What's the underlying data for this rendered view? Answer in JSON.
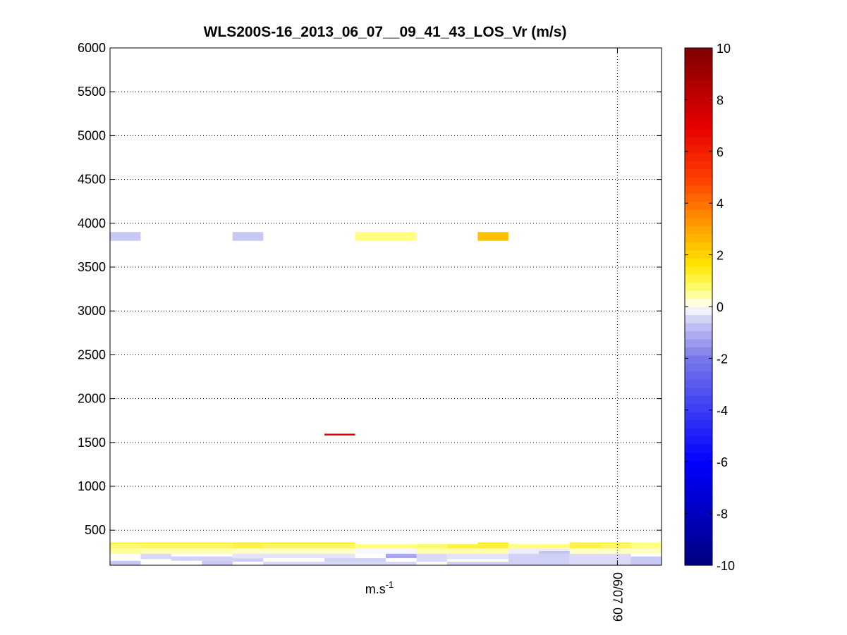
{
  "chart_data": {
    "type": "heatmap",
    "title": "WLS200S-16_2013_06_07__09_41_43_LOS_Vr (m/s)",
    "xlabel": "m.s",
    "xlabel_superscript": "-1",
    "ylabel": "",
    "ylim": [
      100,
      6000
    ],
    "yticks": [
      500,
      1000,
      1500,
      2000,
      2500,
      3000,
      3500,
      4000,
      4500,
      5000,
      5500,
      6000
    ],
    "xticks": [
      {
        "x": 0.92,
        "label": "06/07 09"
      }
    ],
    "grid": true,
    "colorbar": {
      "range": [
        -10,
        10
      ],
      "ticks": [
        10,
        8,
        6,
        4,
        2,
        0,
        -2,
        -4,
        -6,
        -8,
        -10
      ],
      "placement": "right"
    },
    "cells": [
      {
        "x0": 0.0,
        "x1": 0.0556,
        "y0": 3800,
        "y1": 3900,
        "value": -0.6
      },
      {
        "x0": 0.2222,
        "x1": 0.2778,
        "y0": 3800,
        "y1": 3900,
        "value": -0.6
      },
      {
        "x0": 0.4444,
        "x1": 0.5556,
        "y0": 3800,
        "y1": 3900,
        "value": 0.6
      },
      {
        "x0": 0.6667,
        "x1": 0.7222,
        "y0": 3800,
        "y1": 3900,
        "value": 2.4
      },
      {
        "x0": 0.3889,
        "x1": 0.4444,
        "y0": 1580,
        "y1": 1600,
        "value": 7.0
      },
      {
        "x0": 0.0,
        "x1": 0.2222,
        "y0": 340,
        "y1": 360,
        "value": 1.2
      },
      {
        "x0": 0.2222,
        "x1": 0.4444,
        "y0": 340,
        "y1": 360,
        "value": 1.3
      },
      {
        "x0": 0.6667,
        "x1": 0.7222,
        "y0": 340,
        "y1": 360,
        "value": 1.4
      },
      {
        "x0": 0.8333,
        "x1": 0.9444,
        "y0": 340,
        "y1": 360,
        "value": 1.2
      },
      {
        "x0": 0.0,
        "x1": 0.0556,
        "y0": 290,
        "y1": 340,
        "value": 0.8
      },
      {
        "x0": 0.0556,
        "x1": 0.2222,
        "y0": 290,
        "y1": 340,
        "value": 0.9
      },
      {
        "x0": 0.2222,
        "x1": 0.2778,
        "y0": 290,
        "y1": 340,
        "value": 1.1
      },
      {
        "x0": 0.2778,
        "x1": 0.4444,
        "y0": 290,
        "y1": 340,
        "value": 0.9
      },
      {
        "x0": 0.4444,
        "x1": 0.5556,
        "y0": 290,
        "y1": 340,
        "value": 0.6
      },
      {
        "x0": 0.5556,
        "x1": 0.6111,
        "y0": 290,
        "y1": 340,
        "value": 0.8
      },
      {
        "x0": 0.6111,
        "x1": 0.6667,
        "y0": 290,
        "y1": 340,
        "value": 1.1
      },
      {
        "x0": 0.6667,
        "x1": 0.7222,
        "y0": 290,
        "y1": 340,
        "value": 1.2
      },
      {
        "x0": 0.7222,
        "x1": 0.8333,
        "y0": 290,
        "y1": 340,
        "value": 0.6
      },
      {
        "x0": 0.8333,
        "x1": 0.8889,
        "y0": 290,
        "y1": 340,
        "value": 1.1
      },
      {
        "x0": 0.8889,
        "x1": 0.9444,
        "y0": 290,
        "y1": 340,
        "value": 0.9
      },
      {
        "x0": 0.9444,
        "x1": 1.0,
        "y0": 290,
        "y1": 360,
        "value": 0.6
      },
      {
        "x0": 0.0,
        "x1": 0.0556,
        "y0": 230,
        "y1": 290,
        "value": 0.5
      },
      {
        "x0": 0.0556,
        "x1": 0.2222,
        "y0": 230,
        "y1": 290,
        "value": 0.4
      },
      {
        "x0": 0.2222,
        "x1": 0.4444,
        "y0": 230,
        "y1": 290,
        "value": 0.3
      },
      {
        "x0": 0.4444,
        "x1": 0.5556,
        "y0": 230,
        "y1": 290,
        "value": -0.1
      },
      {
        "x0": 0.5556,
        "x1": 0.7222,
        "y0": 230,
        "y1": 290,
        "value": 0.4
      },
      {
        "x0": 0.7222,
        "x1": 0.8333,
        "y0": 230,
        "y1": 290,
        "value": -0.2
      },
      {
        "x0": 0.8333,
        "x1": 1.0,
        "y0": 230,
        "y1": 290,
        "value": 0.3
      },
      {
        "x0": 0.0,
        "x1": 0.0556,
        "y0": 100,
        "y1": 150,
        "value": -0.6
      },
      {
        "x0": 0.0556,
        "x1": 0.1111,
        "y0": 170,
        "y1": 230,
        "value": -0.4
      },
      {
        "x0": 0.1111,
        "x1": 0.2222,
        "y0": 150,
        "y1": 200,
        "value": -0.5
      },
      {
        "x0": 0.1667,
        "x1": 0.2222,
        "y0": 100,
        "y1": 150,
        "value": -0.6
      },
      {
        "x0": 0.2222,
        "x1": 0.2778,
        "y0": 140,
        "y1": 180,
        "value": -0.5
      },
      {
        "x0": 0.2222,
        "x1": 0.4444,
        "y0": 180,
        "y1": 230,
        "value": -0.3
      },
      {
        "x0": 0.2778,
        "x1": 0.4444,
        "y0": 100,
        "y1": 140,
        "value": -0.4
      },
      {
        "x0": 0.3889,
        "x1": 0.5,
        "y0": 140,
        "y1": 180,
        "value": -0.5
      },
      {
        "x0": 0.4444,
        "x1": 0.5556,
        "y0": 100,
        "y1": 140,
        "value": -0.4
      },
      {
        "x0": 0.5,
        "x1": 0.5556,
        "y0": 180,
        "y1": 230,
        "value": -1.2
      },
      {
        "x0": 0.5556,
        "x1": 0.6111,
        "y0": 140,
        "y1": 230,
        "value": -0.4
      },
      {
        "x0": 0.6111,
        "x1": 0.7222,
        "y0": 100,
        "y1": 140,
        "value": -0.5
      },
      {
        "x0": 0.6111,
        "x1": 0.7222,
        "y0": 170,
        "y1": 230,
        "value": -0.3
      },
      {
        "x0": 0.7222,
        "x1": 0.8333,
        "y0": 100,
        "y1": 230,
        "value": -0.5
      },
      {
        "x0": 0.7778,
        "x1": 0.8333,
        "y0": 230,
        "y1": 260,
        "value": -0.7
      },
      {
        "x0": 0.8333,
        "x1": 0.9444,
        "y0": 100,
        "y1": 230,
        "value": -0.4
      },
      {
        "x0": 0.9444,
        "x1": 1.0,
        "y0": 100,
        "y1": 200,
        "value": -0.6
      }
    ]
  }
}
